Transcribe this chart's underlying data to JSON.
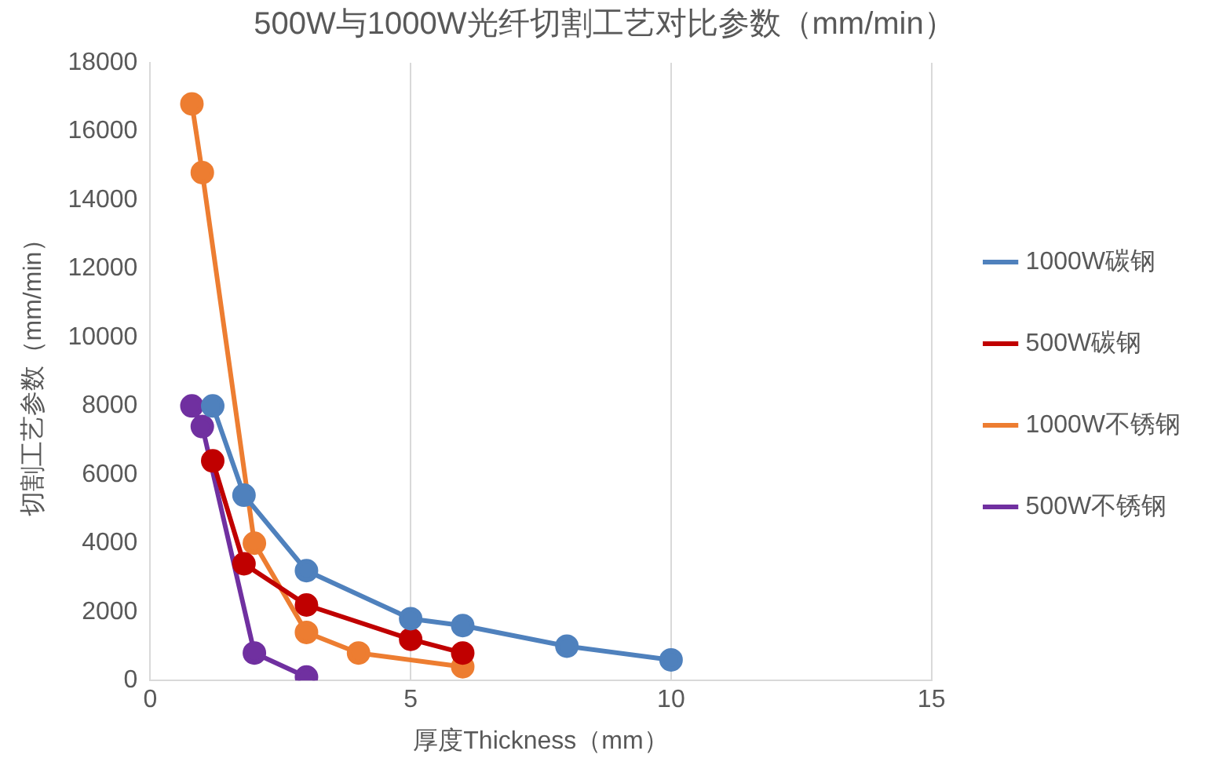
{
  "chart_data": {
    "type": "line",
    "title": "500W与1000W光纤切割工艺对比参数（mm/min）",
    "xlabel": "厚度Thickness（mm）",
    "ylabel": "切割工艺参数（mm/min）",
    "xlim": [
      0,
      15
    ],
    "xticks": [
      0,
      5,
      10,
      15
    ],
    "ylim": [
      0,
      18000
    ],
    "yticks": [
      0,
      2000,
      4000,
      6000,
      8000,
      10000,
      12000,
      14000,
      16000,
      18000
    ],
    "grid": "x",
    "legend": "right",
    "marker": "circle",
    "line_style": "solid",
    "series": [
      {
        "name": "1000W碳钢",
        "color": "#4f81bd",
        "x": [
          1.2,
          1.8,
          3,
          5,
          6,
          8,
          10
        ],
        "values": [
          8000,
          5400,
          3200,
          1800,
          1600,
          1000,
          600
        ]
      },
      {
        "name": "500W碳钢",
        "color": "#c00000",
        "x": [
          1.2,
          1.8,
          3,
          5,
          6
        ],
        "values": [
          6400,
          3400,
          2200,
          1200,
          800
        ]
      },
      {
        "name": "1000W不锈钢",
        "color": "#ed7d31",
        "x": [
          0.8,
          1,
          2,
          3,
          4,
          6
        ],
        "values": [
          16800,
          14800,
          4000,
          1400,
          800,
          400
        ]
      },
      {
        "name": "500W不锈钢",
        "color": "#7030a0",
        "x": [
          0.8,
          1,
          2,
          3
        ],
        "values": [
          8000,
          7400,
          800,
          100
        ]
      }
    ]
  }
}
